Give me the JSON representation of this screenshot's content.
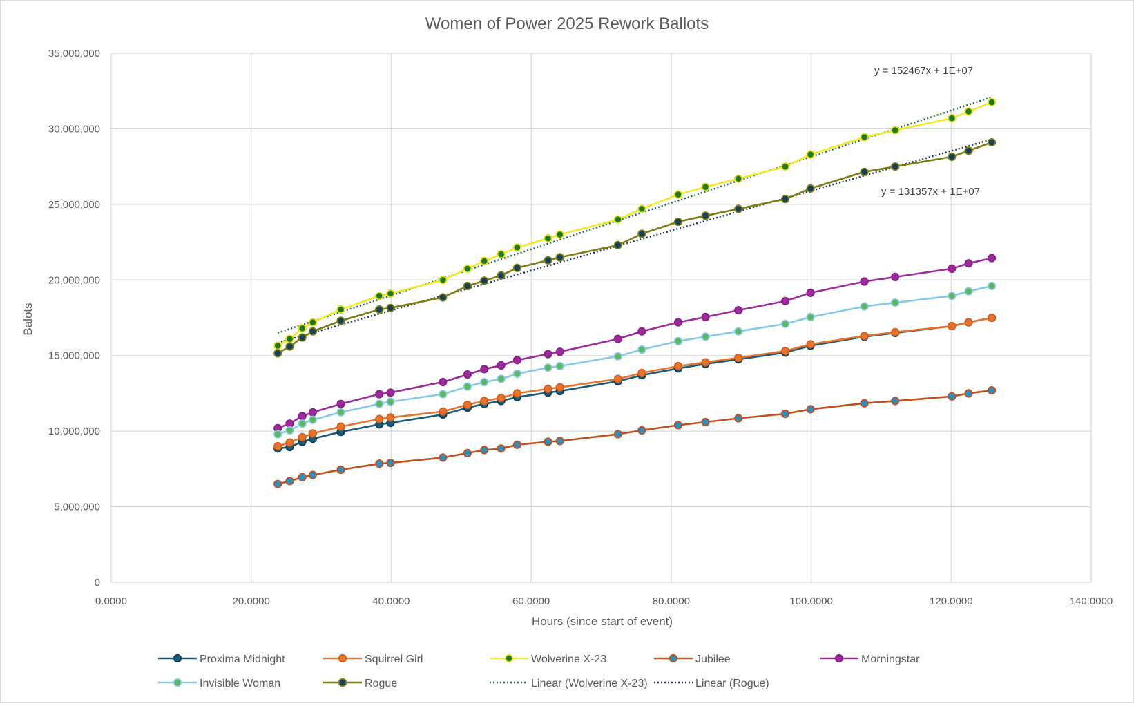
{
  "chart_data": {
    "type": "scatter",
    "title": "Women of Power 2025 Rework Ballots",
    "xlabel": "Hours (since start of event)",
    "ylabel": "Balots",
    "xlim": [
      0,
      140
    ],
    "ylim": [
      0,
      35000000
    ],
    "x_ticks": [
      "0.0000",
      "20.0000",
      "40.0000",
      "60.0000",
      "80.0000",
      "100.0000",
      "120.0000",
      "140.0000"
    ],
    "y_ticks": [
      "0",
      "5,000,000",
      "10,000,000",
      "15,000,000",
      "20,000,000",
      "25,000,000",
      "30,000,000",
      "35,000,000"
    ],
    "grid": true,
    "legend_position": "bottom",
    "x": [
      23.8,
      25.5,
      27.3,
      28.8,
      32.8,
      38.3,
      39.9,
      47.4,
      50.9,
      53.3,
      55.7,
      58.0,
      62.4,
      64.1,
      72.4,
      75.8,
      81.0,
      84.9,
      89.6,
      96.3,
      99.9,
      107.6,
      112.0,
      120.1,
      122.5,
      125.8
    ],
    "series": [
      {
        "name": "Proxima Midnight",
        "line": "#1b5a78",
        "marker_fill": "#1b5a78",
        "marker_edge": "#0e3f57",
        "style": "solid",
        "values": [
          8850000,
          8950000,
          9300000,
          9500000,
          9950000,
          10450000,
          10550000,
          11100000,
          11550000,
          11800000,
          12000000,
          12250000,
          12550000,
          12650000,
          13300000,
          13700000,
          14150000,
          14450000,
          14750000,
          15200000,
          15650000,
          16250000,
          16500000,
          16950000,
          17200000,
          17500000
        ]
      },
      {
        "name": "Squirrel Girl",
        "line": "#e8732f",
        "marker_fill": "#e8732f",
        "marker_edge": "#d0621f",
        "style": "solid",
        "values": [
          9000000,
          9250000,
          9600000,
          9850000,
          10300000,
          10800000,
          10900000,
          11300000,
          11750000,
          12000000,
          12200000,
          12500000,
          12800000,
          12900000,
          13450000,
          13850000,
          14300000,
          14550000,
          14850000,
          15300000,
          15750000,
          16300000,
          16550000,
          16950000,
          17200000,
          17500000
        ]
      },
      {
        "name": "Wolverine X-23",
        "line": "#f0ea24",
        "marker_fill": "#1f7a1f",
        "marker_edge": "#e6df18",
        "style": "solid",
        "values": [
          15650000,
          16100000,
          16800000,
          17200000,
          18050000,
          18950000,
          19100000,
          20000000,
          20750000,
          21250000,
          21700000,
          22150000,
          22750000,
          23000000,
          24000000,
          24700000,
          25650000,
          26150000,
          26700000,
          27500000,
          28300000,
          29450000,
          29900000,
          30700000,
          31150000,
          31750000
        ]
      },
      {
        "name": "Jubilee",
        "line": "#c0501f",
        "marker_fill": "#2d8fbf",
        "marker_edge": "#c0501f",
        "style": "solid",
        "values": [
          6500000,
          6700000,
          6950000,
          7100000,
          7450000,
          7850000,
          7900000,
          8250000,
          8550000,
          8750000,
          8850000,
          9100000,
          9300000,
          9350000,
          9800000,
          10050000,
          10400000,
          10600000,
          10850000,
          11150000,
          11450000,
          11850000,
          12000000,
          12300000,
          12500000,
          12700000
        ]
      },
      {
        "name": "Morningstar",
        "line": "#9e2a9e",
        "marker_fill": "#9e2a9e",
        "marker_edge": "#862286",
        "style": "solid",
        "values": [
          10200000,
          10500000,
          11000000,
          11250000,
          11800000,
          12450000,
          12550000,
          13250000,
          13750000,
          14100000,
          14350000,
          14700000,
          15100000,
          15250000,
          16100000,
          16600000,
          17200000,
          17550000,
          18000000,
          18600000,
          19150000,
          19900000,
          20200000,
          20750000,
          21100000,
          21450000
        ]
      },
      {
        "name": "Invisible Woman",
        "line": "#86c8e8",
        "marker_fill": "#5cb85c",
        "marker_edge": "#86c8e8",
        "style": "solid",
        "values": [
          9800000,
          10050000,
          10500000,
          10750000,
          11250000,
          11800000,
          11950000,
          12450000,
          12950000,
          13250000,
          13450000,
          13800000,
          14200000,
          14300000,
          14950000,
          15400000,
          15950000,
          16250000,
          16600000,
          17100000,
          17550000,
          18250000,
          18500000,
          18950000,
          19250000,
          19600000
        ]
      },
      {
        "name": "Rogue",
        "line": "#7d7d12",
        "marker_fill": "#16405a",
        "marker_edge": "#7d7d12",
        "style": "solid",
        "values": [
          15150000,
          15600000,
          16200000,
          16600000,
          17300000,
          18050000,
          18150000,
          18850000,
          19600000,
          19950000,
          20300000,
          20800000,
          21300000,
          21500000,
          22300000,
          23050000,
          23850000,
          24250000,
          24700000,
          25350000,
          26050000,
          27150000,
          27500000,
          28150000,
          28550000,
          29100000
        ]
      }
    ],
    "trendlines": [
      {
        "name": "Linear (Wolverine X-23)",
        "series": "Wolverine X-23",
        "color": "#1f6b3f",
        "style": "dotted",
        "x": [
          23.8,
          125.8
        ],
        "values": [
          16500000,
          32100000
        ],
        "equation": "y = 152467x + 1E+07"
      },
      {
        "name": "Linear (Rogue)",
        "series": "Rogue",
        "color": "#1c3550",
        "style": "dotted",
        "x": [
          23.8,
          125.8
        ],
        "values": [
          15850000,
          29300000
        ],
        "equation": "y = 131357x + 1E+07"
      }
    ],
    "legend": [
      "Proxima Midnight",
      "Squirrel Girl",
      "Wolverine X-23",
      "Jubilee",
      "Morningstar",
      "Invisible Woman",
      "Rogue",
      "Linear (Wolverine X-23)",
      "Linear (Rogue)"
    ]
  }
}
